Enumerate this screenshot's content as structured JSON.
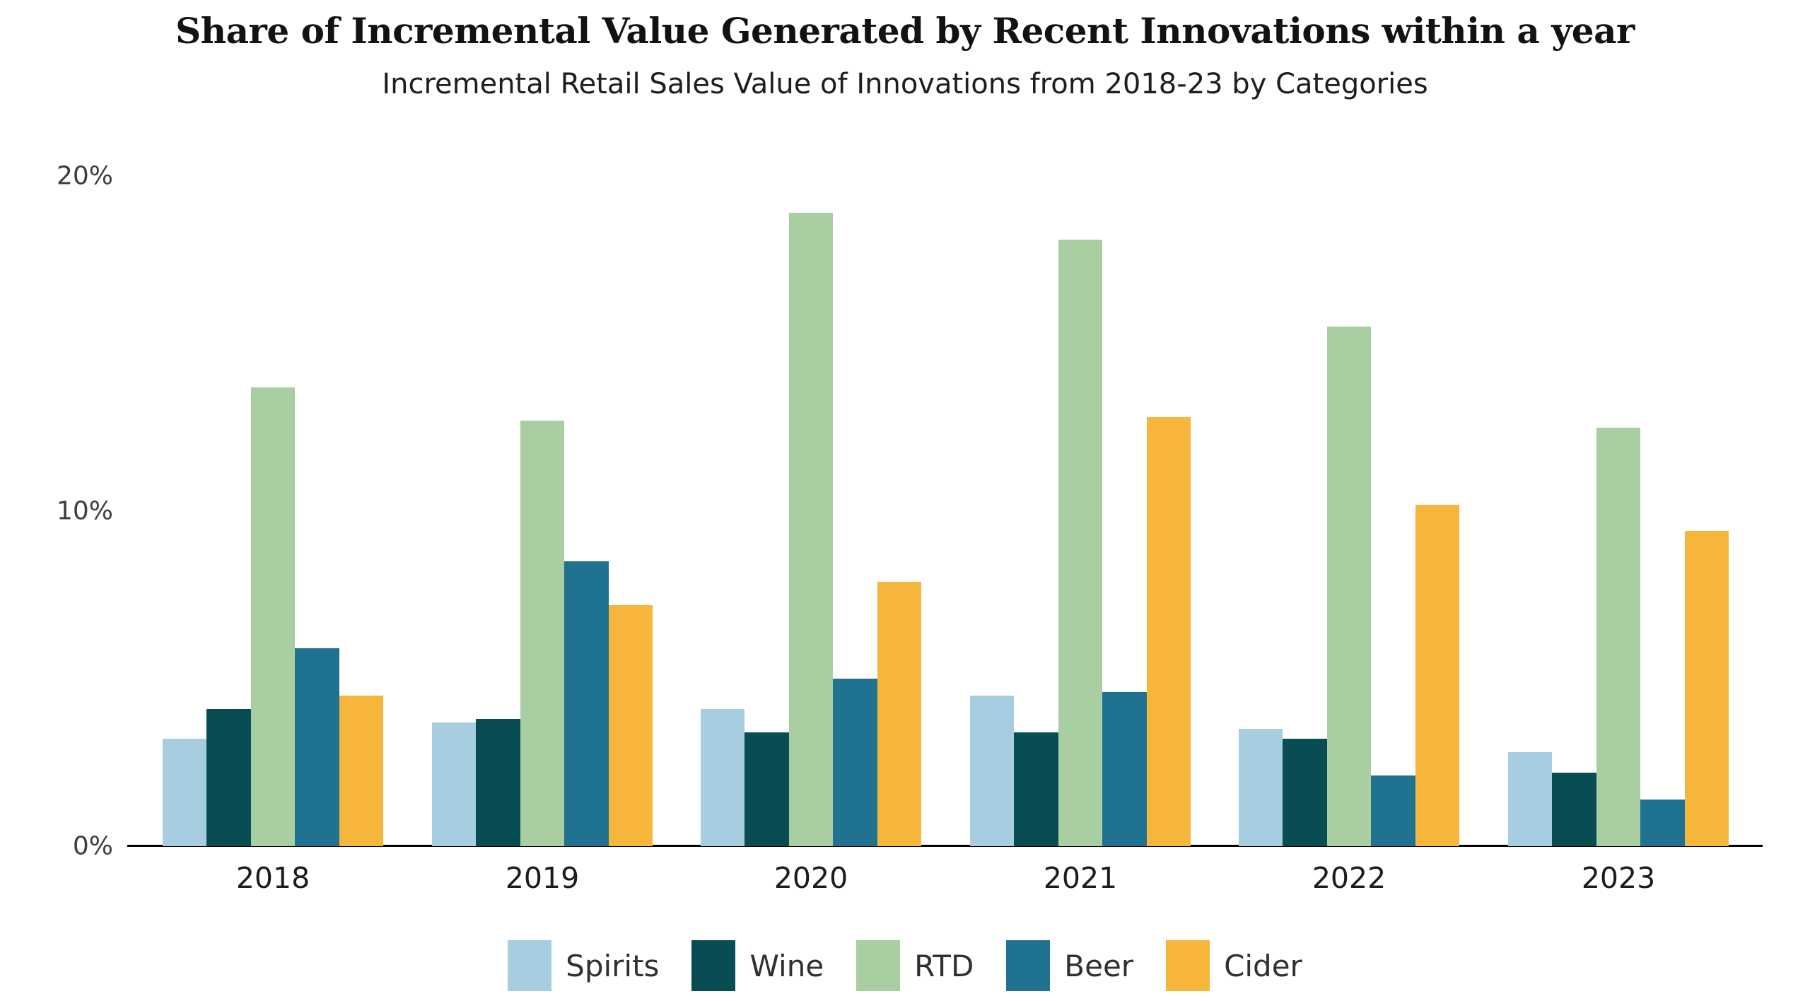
{
  "chart_data": {
    "type": "bar",
    "title": "Share of Incremental Value Generated by Recent Innovations within a year",
    "subtitle": "Incremental Retail Sales Value of Innovations from 2018-23 by Categories",
    "categories": [
      "2018",
      "2019",
      "2020",
      "2021",
      "2022",
      "2023"
    ],
    "series": [
      {
        "name": "Spirits",
        "color": "#A6CEE0",
        "values": [
          3.2,
          3.7,
          4.1,
          4.5,
          3.5,
          2.8
        ]
      },
      {
        "name": "Wine",
        "color": "#084D54",
        "values": [
          4.1,
          3.8,
          3.4,
          3.4,
          3.2,
          2.2
        ]
      },
      {
        "name": "RTD",
        "color": "#A8CEA1",
        "values": [
          13.7,
          12.7,
          18.9,
          18.1,
          15.5,
          12.5
        ]
      },
      {
        "name": "Beer",
        "color": "#1F7391",
        "values": [
          5.9,
          8.5,
          5.0,
          4.6,
          2.1,
          1.4
        ]
      },
      {
        "name": "Cider",
        "color": "#F5B63B",
        "values": [
          4.5,
          7.2,
          7.9,
          12.8,
          10.2,
          9.4
        ]
      }
    ],
    "unit": "%",
    "xlabel": "",
    "ylabel": "",
    "ylim": [
      0,
      20
    ],
    "yticks": [
      {
        "value": 0,
        "label": "0%"
      },
      {
        "value": 10,
        "label": "10%"
      },
      {
        "value": 20,
        "label": "20%"
      }
    ],
    "grid": false,
    "legend_position": "bottom",
    "background_color": "#FFFFFF",
    "axis_line_color": "#000000"
  }
}
